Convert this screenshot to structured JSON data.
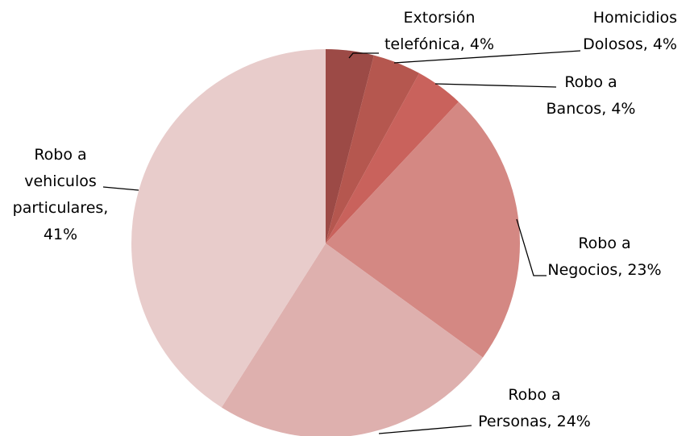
{
  "chart_data": {
    "type": "pie",
    "categories": [
      "Extorsión telefónica",
      "Homicidios Dolosos",
      "Robo a Bancos",
      "Robo a Negocios",
      "Robo a Personas",
      "Robo a vehiculos particulares"
    ],
    "values": [
      4,
      4,
      4,
      23,
      24,
      41
    ],
    "value_labels": [
      "4%",
      "4%",
      "4%",
      "23%",
      "24%",
      "41%"
    ],
    "colors": [
      "#9c4a46",
      "#b5574f",
      "#c9625c",
      "#d48883",
      "#deb0ae",
      "#e8cccb"
    ]
  }
}
